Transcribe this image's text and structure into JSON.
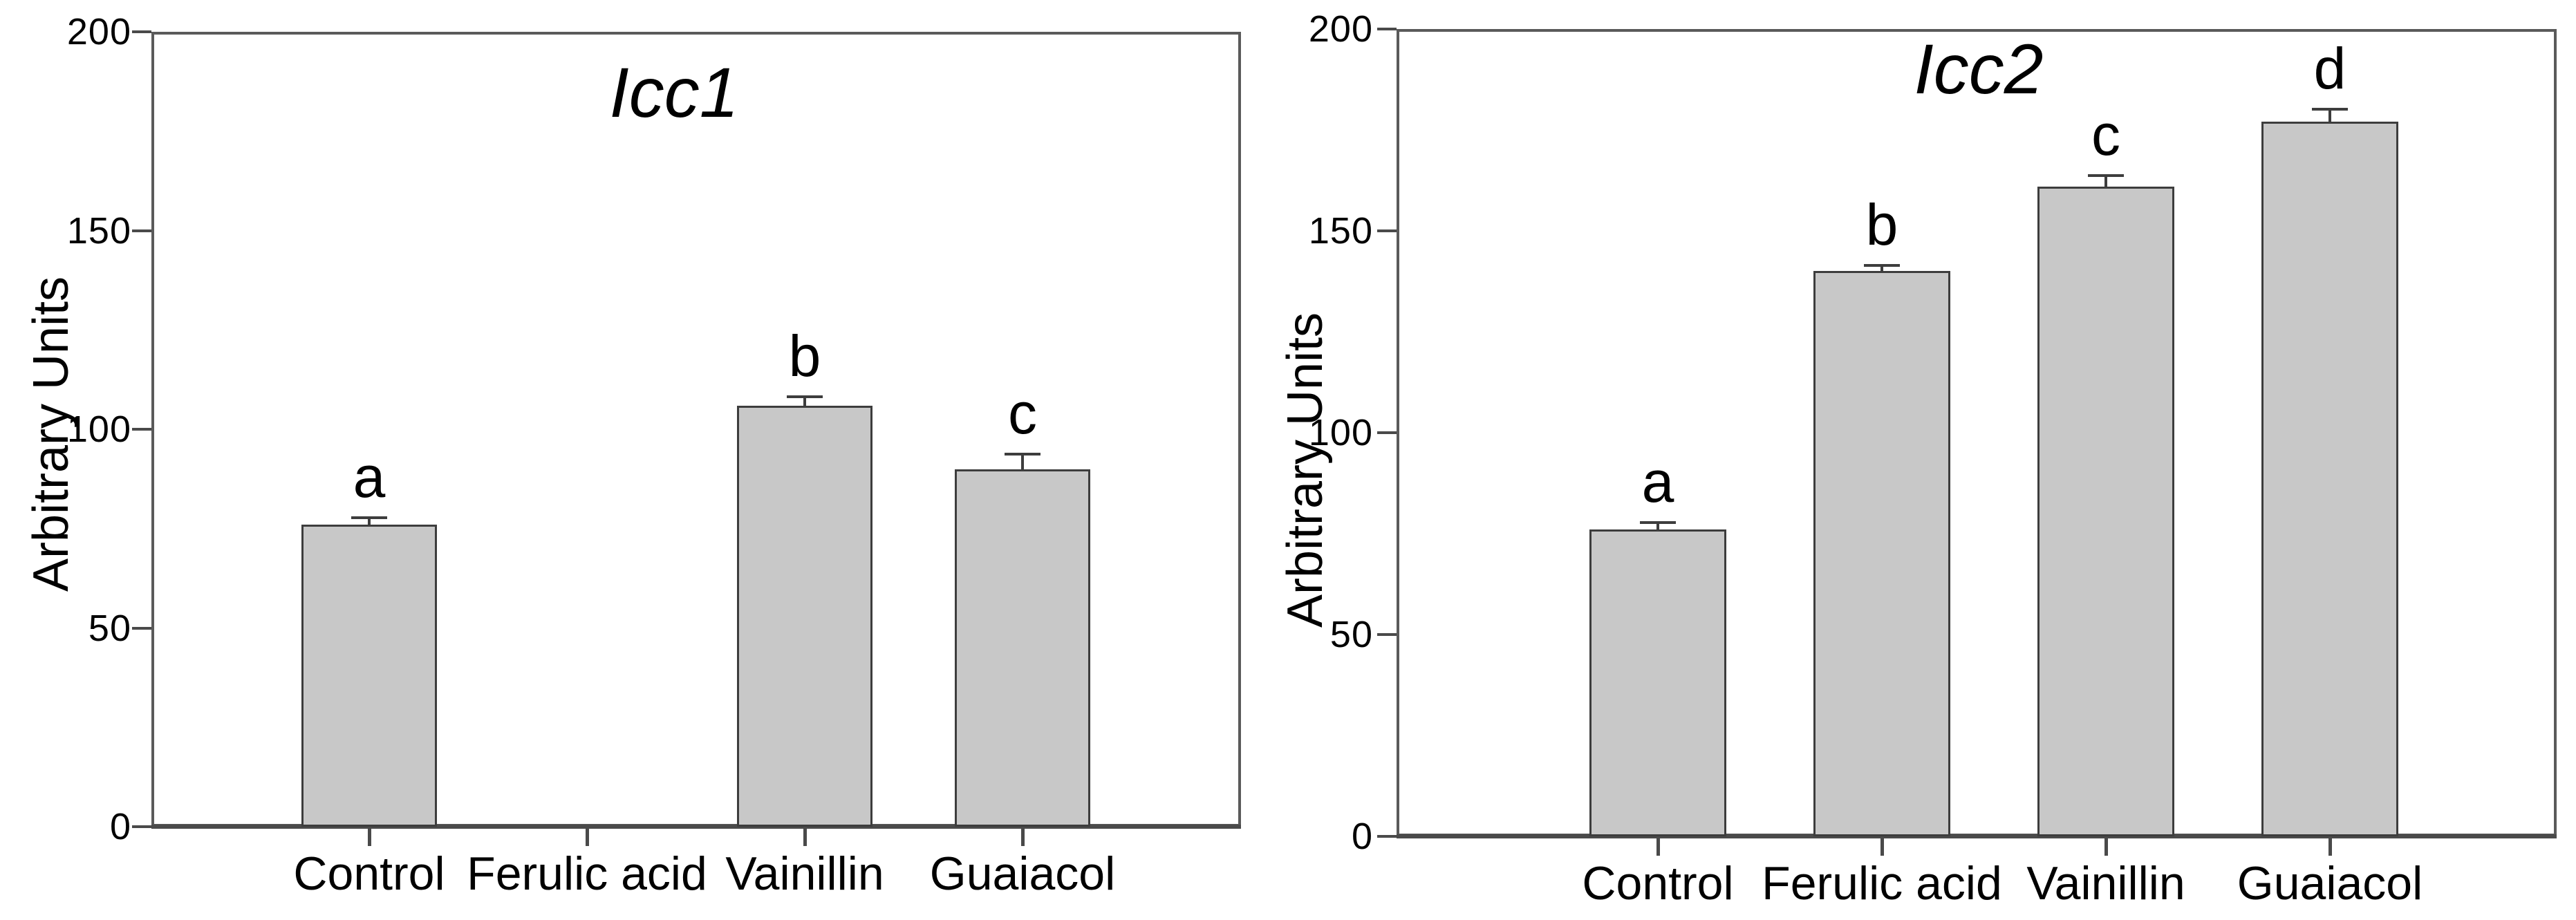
{
  "figure": {
    "background_color": "#ffffff",
    "text_color": "#000000",
    "axis_color": "#5a5a5a",
    "bar_fill_color": "#c8c8c8",
    "bar_border_color": "#3d3d3d"
  },
  "chart_data": [
    {
      "type": "bar",
      "title": "Icc1",
      "ylabel": "Arbitrary Units",
      "xlabel": "",
      "categories": [
        "Control",
        "Ferulic acid",
        "Vainillin",
        "Guaiacol"
      ],
      "values": [
        76,
        0,
        106,
        90
      ],
      "errors": [
        1.5,
        0,
        2,
        3.5
      ],
      "sig_letters": [
        "a",
        "",
        "b",
        "c"
      ],
      "ylim": [
        0,
        200
      ],
      "yticks": [
        0,
        50,
        100,
        150,
        200
      ],
      "grid": false,
      "legend": "none",
      "bar_color": "#c8c8c8",
      "bar_border": "#3d3d3d"
    },
    {
      "type": "bar",
      "title": "Icc2",
      "ylabel": "Arbitrary Units",
      "xlabel": "",
      "categories": [
        "Control",
        "Ferulic acid",
        "Vainillin",
        "Guaiacol"
      ],
      "values": [
        76,
        140,
        161,
        177
      ],
      "errors": [
        1.5,
        1.3,
        2.5,
        3
      ],
      "sig_letters": [
        "a",
        "b",
        "c",
        "d"
      ],
      "ylim": [
        0,
        200
      ],
      "yticks": [
        0,
        50,
        100,
        150,
        200
      ],
      "grid": false,
      "legend": "none",
      "bar_color": "#c8c8c8",
      "bar_border": "#3d3d3d"
    }
  ]
}
